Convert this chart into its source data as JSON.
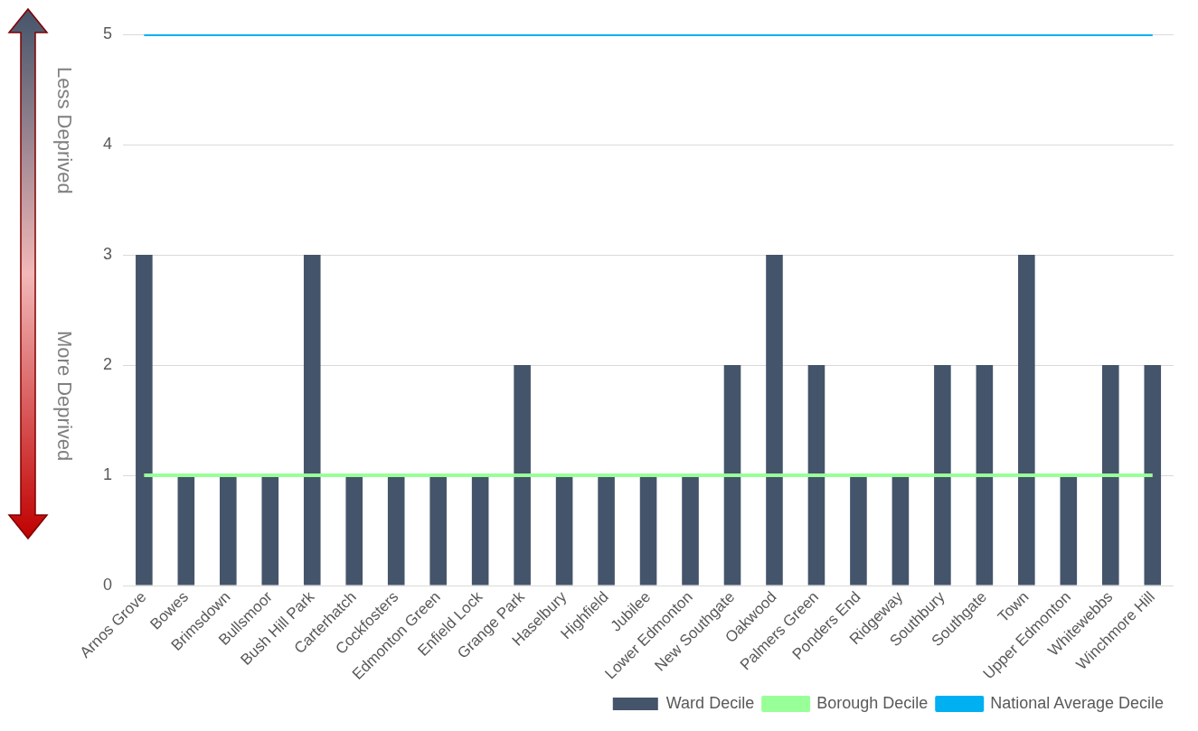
{
  "chart_data": {
    "type": "bar",
    "categories": [
      "Arnos Grove",
      "Bowes",
      "Brimsdown",
      "Bullsmoor",
      "Bush Hill Park",
      "Carterhatch",
      "Cockfosters",
      "Edmonton Green",
      "Enfield Lock",
      "Grange Park",
      "Haselbury",
      "Highfield",
      "Jubilee",
      "Lower Edmonton",
      "New Southgate",
      "Oakwood",
      "Palmers Green",
      "Ponders End",
      "Ridgeway",
      "Southbury",
      "Southgate",
      "Town",
      "Upper Edmonton",
      "Whitewebbs",
      "Winchmore Hill"
    ],
    "series": [
      {
        "name": "Ward Decile",
        "color": "#44546a",
        "values": [
          3,
          1,
          1,
          1,
          3,
          1,
          1,
          1,
          1,
          2,
          1,
          1,
          1,
          1,
          2,
          3,
          2,
          1,
          1,
          2,
          2,
          3,
          1,
          2,
          2
        ]
      },
      {
        "name": "Borough Decile",
        "type": "line",
        "color": "#99ff99",
        "values": [
          1,
          1,
          1,
          1,
          1,
          1,
          1,
          1,
          1,
          1,
          1,
          1,
          1,
          1,
          1,
          1,
          1,
          1,
          1,
          1,
          1,
          1,
          1,
          1,
          1
        ]
      },
      {
        "name": "National Average Decile",
        "type": "line",
        "color": "#00b0f0",
        "values": [
          5,
          5,
          5,
          5,
          5,
          5,
          5,
          5,
          5,
          5,
          5,
          5,
          5,
          5,
          5,
          5,
          5,
          5,
          5,
          5,
          5,
          5,
          5,
          5,
          5
        ]
      }
    ],
    "ylim": [
      0,
      5
    ],
    "yticks": [
      0,
      1,
      2,
      3,
      4,
      5
    ],
    "grid": "y",
    "legend": "bottom",
    "marker": "none",
    "annotations": [
      "Less Deprived",
      "More Deprived"
    ]
  }
}
